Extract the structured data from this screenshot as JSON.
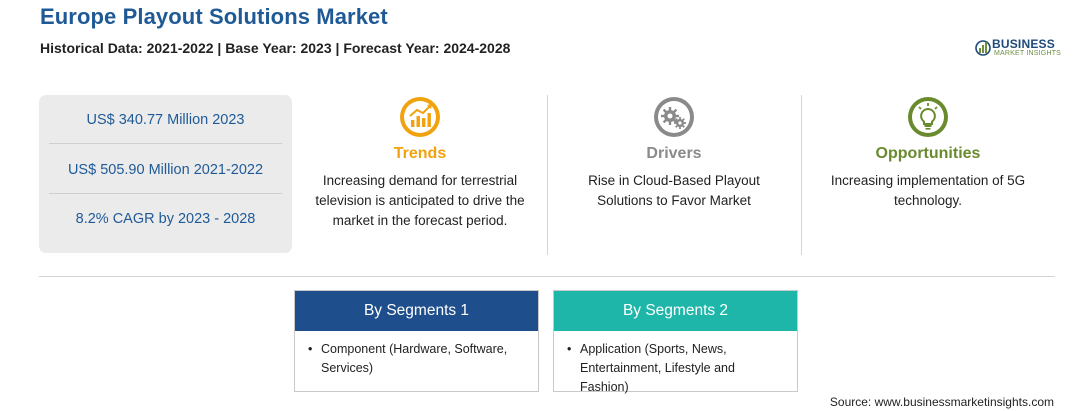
{
  "header": {
    "title": "Europe Playout Solutions Market",
    "subtitle": "Historical Data: 2021-2022 | Base Year: 2023 | Forecast Year: 2024-2028"
  },
  "logo": {
    "main": "BUSINESS",
    "sub": "MARKET INSIGHTS",
    "colors": {
      "primary": "#1d4a7a",
      "accent": "#6f8f3f"
    }
  },
  "stats": [
    "US$ 340.77 Million 2023",
    "US$ 505.90 Million 2021-2022",
    "8.2% CAGR by 2023 - 2028"
  ],
  "columns": [
    {
      "icon": "trend-chart-icon",
      "title": "Trends",
      "color": "#f0a20f",
      "text": "Increasing demand for terrestrial television is anticipated to drive the market in the forecast period."
    },
    {
      "icon": "gears-icon",
      "title": "Drivers",
      "color": "#8a8a8a",
      "text": "Rise in Cloud-Based Playout Solutions to Favor Market"
    },
    {
      "icon": "lightbulb-icon",
      "title": "Opportunities",
      "color": "#6a8a2e",
      "text": "Increasing implementation of 5G technology."
    }
  ],
  "segments": [
    {
      "title": "By Segments 1",
      "color": "#1f4e8c",
      "bullet": "•",
      "text": "Component (Hardware, Software, Services)"
    },
    {
      "title": "By Segments 2",
      "color": "#1fb6aa",
      "bullet": "•",
      "text": "Application (Sports, News, Entertainment, Lifestyle and Fashion)"
    }
  ],
  "source": "Source: www.businessmarketinsights.com"
}
